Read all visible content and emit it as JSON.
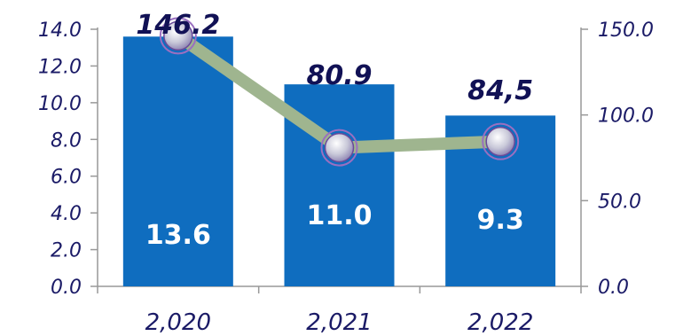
{
  "chart_data": {
    "type": "bar",
    "categories": [
      "2,020",
      "2,021",
      "2,022"
    ],
    "series": [
      {
        "type": "bar",
        "axis": "left",
        "values": [
          13.6,
          11.0,
          9.3
        ],
        "labels": [
          "13.6",
          "11.0",
          "9.3"
        ]
      },
      {
        "type": "line",
        "axis": "right",
        "values": [
          146.2,
          80.9,
          84.5
        ],
        "labels": [
          "146.2",
          "80.9",
          "84,5"
        ]
      }
    ],
    "y_left": {
      "ylim": [
        0,
        14
      ],
      "ticks": [
        "0.0",
        "2.0",
        "4.0",
        "6.0",
        "8.0",
        "10.0",
        "12.0",
        "14.0"
      ]
    },
    "y_right": {
      "ylim": [
        0,
        150
      ],
      "ticks": [
        "0.0",
        "50.0",
        "100.0",
        "150.0"
      ]
    },
    "colors": {
      "bar": "#0f6dbf",
      "line": "#9fb58f",
      "marker": "#c9c9d9",
      "axis": "#999999",
      "text": "#1a1a66"
    }
  }
}
